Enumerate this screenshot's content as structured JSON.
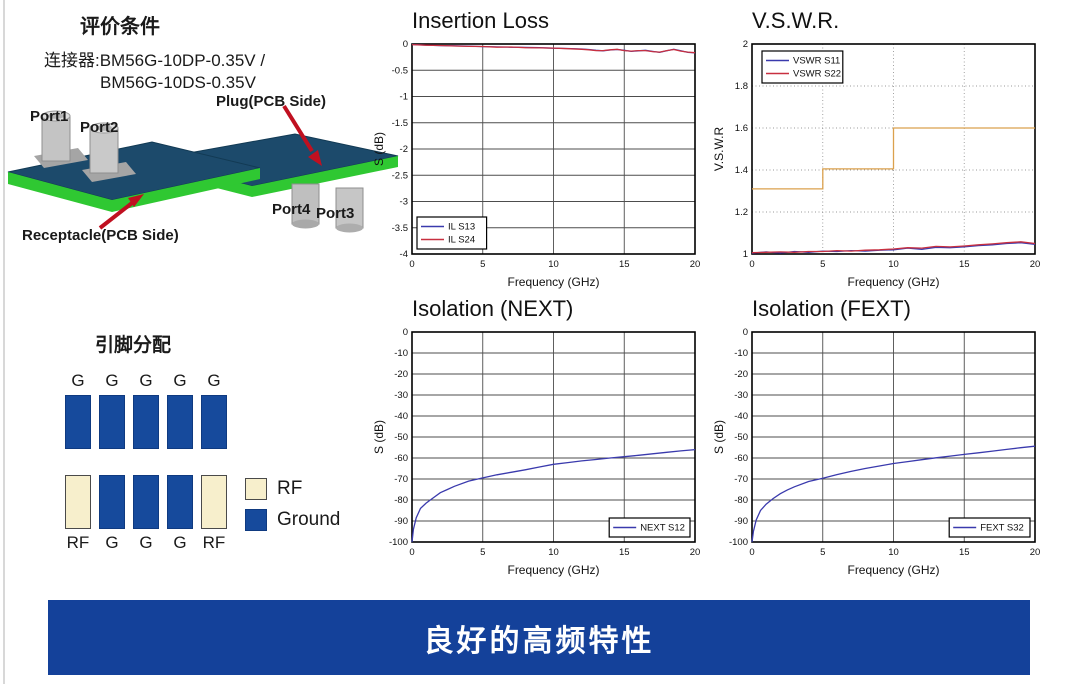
{
  "conditions": {
    "title": "评价条件",
    "line1": "连接器:BM56G-10DP-0.35V /",
    "line2": "BM56G-10DS-0.35V"
  },
  "diagram": {
    "port1": "Port1",
    "port2": "Port2",
    "port3": "Port3",
    "port4": "Port4",
    "plug": "Plug(PCB Side)",
    "receptacle": "Receptacle(PCB Side)"
  },
  "pins": {
    "title": "引脚分配",
    "top": [
      {
        "label": "G",
        "type": "g"
      },
      {
        "label": "G",
        "type": "g"
      },
      {
        "label": "G",
        "type": "g"
      },
      {
        "label": "G",
        "type": "g"
      },
      {
        "label": "G",
        "type": "g"
      }
    ],
    "bottom": [
      {
        "label": "RF",
        "type": "rf"
      },
      {
        "label": "G",
        "type": "g"
      },
      {
        "label": "G",
        "type": "g"
      },
      {
        "label": "G",
        "type": "g"
      },
      {
        "label": "RF",
        "type": "rf"
      }
    ],
    "legend": {
      "rf": "RF",
      "ground": "Ground"
    },
    "colors": {
      "rf": "#f7efcc",
      "ground": "#164a9c"
    }
  },
  "banner": {
    "text": "良好的高频特性",
    "bg": "#14419a",
    "fg": "#ffffff"
  },
  "chart_data": [
    {
      "type": "line",
      "title": "Insertion Loss",
      "xlabel": "Frequency (GHz)",
      "ylabel": "S (dB)",
      "xlim": [
        0,
        20
      ],
      "ylim": [
        -4,
        0
      ],
      "xticks": [
        0,
        5,
        10,
        15,
        20
      ],
      "yticks": [
        0,
        -0.5,
        -1,
        -1.5,
        -2,
        -2.5,
        -3,
        -3.5,
        -4
      ],
      "grid": "solid",
      "legend_pos": "bottom-left",
      "series": [
        {
          "name": "IL S13",
          "color": "#3a3aad",
          "x": [
            0,
            1,
            2,
            3,
            4,
            5,
            6,
            7,
            8,
            9,
            10,
            11,
            12,
            12.5,
            13,
            13.5,
            14,
            14.5,
            15,
            15.5,
            16,
            16.5,
            17,
            17.5,
            18,
            18.5,
            19,
            19.5,
            20
          ],
          "y": [
            -0.01,
            -0.02,
            -0.03,
            -0.035,
            -0.04,
            -0.05,
            -0.055,
            -0.06,
            -0.065,
            -0.07,
            -0.08,
            -0.085,
            -0.095,
            -0.105,
            -0.12,
            -0.13,
            -0.115,
            -0.105,
            -0.12,
            -0.14,
            -0.13,
            -0.12,
            -0.14,
            -0.16,
            -0.13,
            -0.1,
            -0.13,
            -0.16,
            -0.17
          ]
        },
        {
          "name": "IL S24",
          "color": "#c83040",
          "x": [
            0,
            1,
            2,
            3,
            4,
            5,
            6,
            7,
            8,
            9,
            10,
            11,
            12,
            12.5,
            13,
            13.5,
            14,
            14.5,
            15,
            15.5,
            16,
            16.5,
            17,
            17.5,
            18,
            18.5,
            19,
            19.5,
            20
          ],
          "y": [
            -0.012,
            -0.022,
            -0.028,
            -0.038,
            -0.045,
            -0.048,
            -0.06,
            -0.058,
            -0.07,
            -0.075,
            -0.078,
            -0.09,
            -0.1,
            -0.11,
            -0.125,
            -0.125,
            -0.11,
            -0.1,
            -0.125,
            -0.135,
            -0.125,
            -0.125,
            -0.145,
            -0.155,
            -0.125,
            -0.105,
            -0.135,
            -0.155,
            -0.165
          ]
        }
      ]
    },
    {
      "type": "line",
      "title": "V.S.W.R.",
      "xlabel": "Frequency (GHz)",
      "ylabel": "V.S.W.R",
      "xlim": [
        0,
        20
      ],
      "ylim": [
        1,
        2
      ],
      "xticks": [
        0,
        5,
        10,
        15,
        20
      ],
      "yticks": [
        1,
        1.2,
        1.4,
        1.6,
        1.8,
        2
      ],
      "grid": "dotted",
      "legend_pos": "top-left",
      "series": [
        {
          "name": "",
          "in_legend": false,
          "color": "#dba14d",
          "x": [
            0,
            5,
            5,
            10,
            10,
            20
          ],
          "y": [
            1.31,
            1.31,
            1.405,
            1.405,
            1.6,
            1.6
          ]
        },
        {
          "name": "VSWR S11",
          "color": "#3a3aad",
          "x": [
            0,
            1,
            2,
            3,
            4,
            5,
            6,
            7,
            8,
            9,
            10,
            11,
            12,
            13,
            14,
            15,
            16,
            17,
            18,
            19,
            20
          ],
          "y": [
            1.004,
            1.01,
            1.005,
            1.012,
            1.008,
            1.014,
            1.012,
            1.016,
            1.014,
            1.018,
            1.02,
            1.028,
            1.022,
            1.032,
            1.03,
            1.034,
            1.04,
            1.044,
            1.05,
            1.054,
            1.046
          ]
        },
        {
          "name": "VSWR S22",
          "color": "#c83040",
          "x": [
            0,
            1,
            2,
            3,
            4,
            5,
            6,
            7,
            8,
            9,
            10,
            11,
            12,
            13,
            14,
            15,
            16,
            17,
            18,
            19,
            20
          ],
          "y": [
            1.006,
            1.008,
            1.01,
            1.008,
            1.012,
            1.012,
            1.016,
            1.014,
            1.018,
            1.02,
            1.024,
            1.03,
            1.028,
            1.036,
            1.034,
            1.038,
            1.044,
            1.048,
            1.054,
            1.058,
            1.05
          ]
        }
      ]
    },
    {
      "type": "line",
      "title": "Isolation (NEXT)",
      "xlabel": "Frequency (GHz)",
      "ylabel": "S (dB)",
      "xlim": [
        0,
        20
      ],
      "ylim": [
        -100,
        0
      ],
      "xticks": [
        0,
        5,
        10,
        15,
        20
      ],
      "yticks": [
        0,
        -10,
        -20,
        -30,
        -40,
        -50,
        -60,
        -70,
        -80,
        -90,
        -100
      ],
      "grid": "solid",
      "legend_pos": "bottom-right",
      "series": [
        {
          "name": "NEXT S12",
          "color": "#3a3aad",
          "x": [
            0,
            0.1,
            0.3,
            0.6,
            1,
            1.5,
            2,
            2.5,
            3,
            4,
            5,
            6,
            7,
            8,
            9,
            10,
            11,
            12,
            13,
            14,
            15,
            16,
            17,
            18,
            19,
            20
          ],
          "y": [
            -100,
            -94,
            -88.5,
            -84,
            -81.5,
            -79,
            -76.5,
            -75,
            -73.5,
            -71,
            -69.5,
            -68,
            -66.8,
            -65.6,
            -64.3,
            -63,
            -62.2,
            -61.4,
            -60.7,
            -60,
            -59.4,
            -58.7,
            -58,
            -57.3,
            -56.6,
            -56
          ]
        }
      ]
    },
    {
      "type": "line",
      "title": "Isolation (FEXT)",
      "xlabel": "Frequency (GHz)",
      "ylabel": "S (dB)",
      "xlim": [
        0,
        20
      ],
      "ylim": [
        -100,
        0
      ],
      "xticks": [
        0,
        5,
        10,
        15,
        20
      ],
      "yticks": [
        0,
        -10,
        -20,
        -30,
        -40,
        -50,
        -60,
        -70,
        -80,
        -90,
        -100
      ],
      "grid": "solid",
      "legend_pos": "bottom-right",
      "series": [
        {
          "name": "FEXT S32",
          "color": "#3a3aad",
          "x": [
            0,
            0.1,
            0.3,
            0.6,
            1,
            1.5,
            2,
            2.5,
            3,
            4,
            5,
            6,
            7,
            8,
            9,
            10,
            11,
            12,
            13,
            14,
            15,
            16,
            17,
            18,
            19,
            20
          ],
          "y": [
            -100,
            -95,
            -89.5,
            -85,
            -82,
            -79.3,
            -77,
            -75.2,
            -73.7,
            -71.2,
            -69.6,
            -67.9,
            -66.4,
            -65,
            -63.8,
            -62.6,
            -61.7,
            -60.8,
            -59.9,
            -59.1,
            -58.3,
            -57.5,
            -56.7,
            -55.9,
            -55.1,
            -54.4
          ]
        }
      ]
    }
  ]
}
